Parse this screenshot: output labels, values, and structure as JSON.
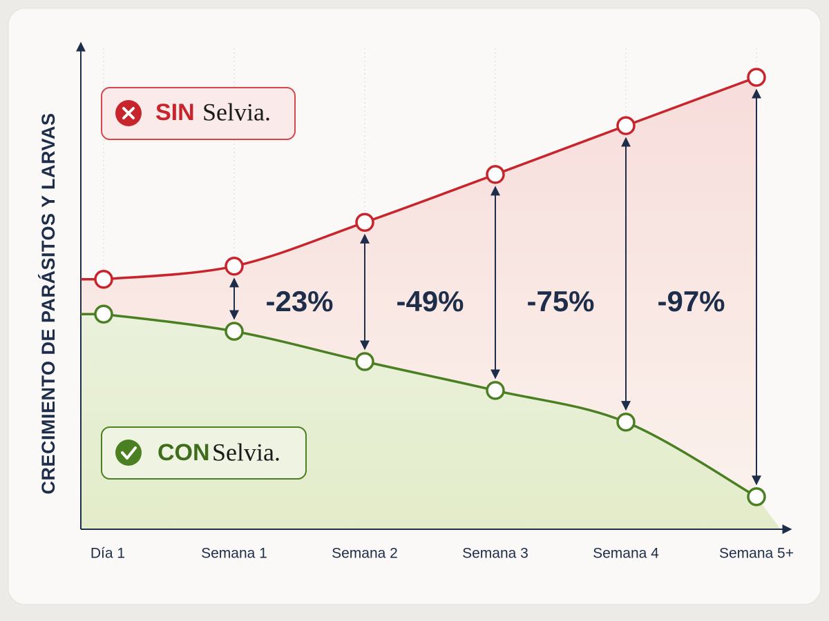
{
  "chart_data": {
    "type": "line",
    "y_label": "CRECIMIENTO DE PARÁSITOS Y LARVAS",
    "brand": "Selvia.",
    "categories": [
      "Día 1",
      "Semana 1",
      "Semana 2",
      "Semana 3",
      "Semana 4",
      "Semana 5+"
    ],
    "series": [
      {
        "name": "SIN",
        "color": "#c8242b",
        "values": [
          55.3,
          58.2,
          67.9,
          78.5,
          89.3,
          100
        ]
      },
      {
        "name": "CON",
        "color": "#4a7f22",
        "values": [
          47.6,
          43.8,
          37.1,
          30.7,
          23.7,
          7.2
        ]
      }
    ],
    "annotations": [
      "-23%",
      "-49%",
      "-75%",
      "-97%"
    ],
    "ylim": [
      0,
      100
    ]
  }
}
